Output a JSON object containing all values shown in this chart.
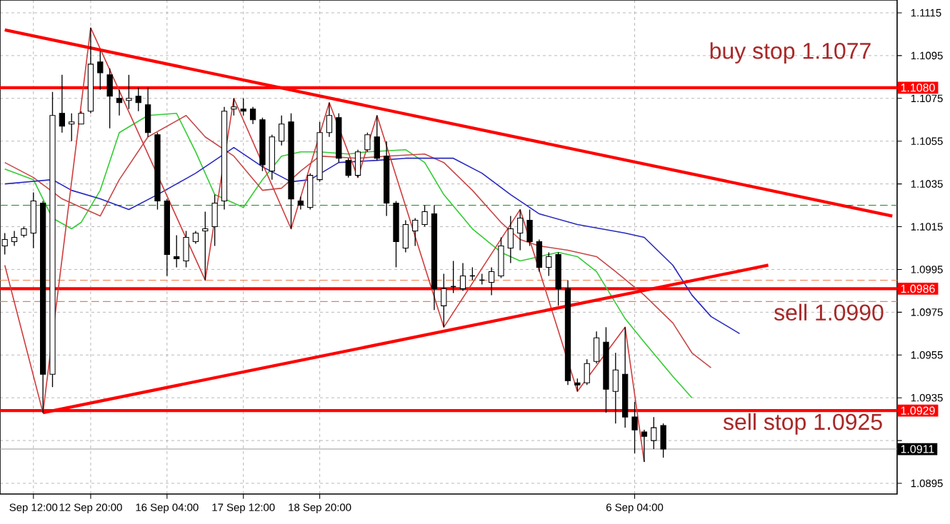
{
  "chart_data": {
    "type": "candlestick",
    "categories": [
      null,
      null,
      null,
      "Sep 12:00",
      null,
      null,
      null,
      null,
      null,
      "12 Sep 20:00",
      null,
      null,
      null,
      null,
      null,
      null,
      null,
      "16 Sep 04:00",
      null,
      null,
      null,
      null,
      null,
      null,
      null,
      "17 Sep 12:00",
      null,
      null,
      null,
      null,
      null,
      null,
      null,
      "18 Sep 20:00",
      null,
      null,
      null,
      null,
      null,
      null,
      null,
      null,
      null,
      null,
      null,
      null,
      null,
      null,
      null,
      null,
      null,
      null,
      null,
      null,
      null,
      null,
      null,
      null,
      null,
      null,
      null,
      null,
      null,
      null,
      null,
      null,
      "6 Sep 04:00",
      null,
      null,
      null,
      null,
      null,
      null,
      null,
      null,
      null,
      null,
      null,
      null,
      null,
      null,
      null,
      null,
      null,
      null,
      null,
      null,
      null,
      null,
      null,
      null,
      null,
      null,
      null
    ],
    "ohlc": [
      [
        1.1006,
        1.1012,
        1.1002,
        1.1009
      ],
      [
        1.1008,
        1.1013,
        1.1006,
        1.101
      ],
      [
        1.1011,
        1.1015,
        1.101,
        1.1014
      ],
      [
        1.1012,
        1.1031,
        1.1005,
        1.1027
      ],
      [
        1.1026,
        1.1027,
        1.0928,
        1.0946
      ],
      [
        1.0946,
        1.1078,
        1.094,
        1.1067
      ],
      [
        1.1068,
        1.1086,
        1.1059,
        1.1062
      ],
      [
        1.1063,
        1.1068,
        1.1055,
        1.1064
      ],
      [
        1.1063,
        1.1069,
        1.1063,
        1.1068
      ],
      [
        1.1069,
        1.1108,
        1.1068,
        1.1091
      ],
      [
        1.1092,
        1.1097,
        1.1079,
        1.1087
      ],
      [
        1.1086,
        1.1089,
        1.1061,
        1.1076
      ],
      [
        1.1075,
        1.1079,
        1.1067,
        1.1073
      ],
      [
        1.1074,
        1.1086,
        1.107,
        1.1075
      ],
      [
        1.1076,
        1.108,
        1.1069,
        1.1073
      ],
      [
        1.1072,
        1.108,
        1.1057,
        1.1059
      ],
      [
        1.1058,
        1.1059,
        1.1023,
        1.1027
      ],
      [
        1.1027,
        1.1028,
        1.0992,
        1.1002
      ],
      [
        1.1001,
        1.1011,
        1.0996,
        1.1
      ],
      [
        1.0999,
        1.1013,
        1.0996,
        1.101
      ],
      [
        1.1008,
        1.1013,
        1.1007,
        1.1012
      ],
      [
        1.1013,
        1.1022,
        1.099,
        1.1014
      ],
      [
        1.1015,
        1.103,
        1.1006,
        1.1026
      ],
      [
        1.1027,
        1.1071,
        1.1023,
        1.1069
      ],
      [
        1.107,
        1.1075,
        1.1067,
        1.1071
      ],
      [
        1.107,
        1.1075,
        1.1067,
        1.1069
      ],
      [
        1.107,
        1.1071,
        1.1063,
        1.1065
      ],
      [
        1.1065,
        1.1066,
        1.1041,
        1.1044
      ],
      [
        1.1041,
        1.1058,
        1.1037,
        1.1057
      ],
      [
        1.1055,
        1.1067,
        1.1053,
        1.1063
      ],
      [
        1.1064,
        1.1068,
        1.1014,
        1.1028
      ],
      [
        1.1027,
        1.1029,
        1.1023,
        1.1025
      ],
      [
        1.1024,
        1.104,
        1.1023,
        1.1039
      ],
      [
        1.1037,
        1.1064,
        1.1036,
        1.1059
      ],
      [
        1.1059,
        1.1073,
        1.1057,
        1.1067
      ],
      [
        1.1066,
        1.1068,
        1.1045,
        1.1047
      ],
      [
        1.1046,
        1.1047,
        1.1038,
        1.1039
      ],
      [
        1.1039,
        1.1051,
        1.1038,
        1.105
      ],
      [
        1.1051,
        1.1059,
        1.105,
        1.1058
      ],
      [
        1.1057,
        1.1067,
        1.1046,
        1.1047
      ],
      [
        1.1048,
        1.1055,
        1.102,
        1.1026
      ],
      [
        1.1026,
        1.1027,
        1.0996,
        1.1008
      ],
      [
        1.1005,
        1.1018,
        1.1003,
        1.1016
      ],
      [
        1.1013,
        1.1019,
        1.1006,
        1.1018
      ],
      [
        1.1016,
        1.1025,
        1.1015,
        1.1022
      ],
      [
        1.1021,
        1.1025,
        1.0976,
        1.0986
      ],
      [
        1.0978,
        1.0993,
        1.0968,
        1.0986
      ],
      [
        1.0987,
        1.0999,
        1.0984,
        1.0987
      ],
      [
        1.0986,
        1.0998,
        1.0985,
        1.0992
      ],
      [
        1.0992,
        1.0996,
        1.099,
        1.0992
      ],
      [
        1.099,
        1.0993,
        1.0988,
        1.099
      ],
      [
        1.0989,
        1.0996,
        1.0983,
        1.0994
      ],
      [
        1.0992,
        1.101,
        1.0991,
        1.1006
      ],
      [
        1.1005,
        1.102,
        1.0998,
        1.1014
      ],
      [
        1.1012,
        1.1023,
        1.1004,
        1.1019
      ],
      [
        1.1018,
        1.1023,
        1.1006,
        1.1008
      ],
      [
        1.1008,
        1.1009,
        1.0994,
        1.0996
      ],
      [
        1.0996,
        1.1003,
        1.0992,
        1.1001
      ],
      [
        1.1002,
        1.1003,
        1.0978,
        1.0986
      ],
      [
        1.0986,
        1.099,
        1.0941,
        1.0943
      ],
      [
        1.0942,
        1.0944,
        1.0938,
        1.0941
      ],
      [
        1.0942,
        1.0953,
        1.0941,
        1.0951
      ],
      [
        1.0952,
        1.0966,
        1.0951,
        1.0963
      ],
      [
        1.0961,
        1.0968,
        1.0928,
        1.0939
      ],
      [
        1.0938,
        1.0956,
        1.0923,
        1.0948
      ],
      [
        1.0946,
        1.0968,
        1.0921,
        1.0926
      ],
      [
        1.0926,
        1.0933,
        1.0909,
        1.092
      ],
      [
        1.0919,
        1.092,
        1.0905,
        1.0917
      ],
      [
        1.0915,
        1.0926,
        1.0911,
        1.0921
      ],
      [
        1.0922,
        1.0923,
        1.0907,
        1.0911
      ],
      null,
      null,
      null,
      null,
      null,
      null,
      null,
      null,
      null,
      null,
      null,
      null,
      null,
      null,
      null,
      null,
      null,
      null,
      null,
      null,
      null,
      null,
      null,
      null
    ],
    "series": [
      {
        "type": "line",
        "color": "#33cc33",
        "values": [
          1.1042,
          null,
          null,
          1.1037,
          null,
          1.1019,
          null,
          1.1014,
          1.1017,
          null,
          1.1032,
          null,
          1.1059,
          null,
          null,
          1.1067,
          null,
          null,
          1.1068,
          null,
          1.105,
          null,
          1.103,
          null,
          null,
          1.1024,
          null,
          1.1037,
          null,
          1.1048,
          null,
          1.105,
          null,
          1.105,
          null,
          null,
          1.1049,
          null,
          1.105,
          null,
          null,
          null,
          1.1051,
          null,
          1.1045,
          null,
          1.103,
          null,
          null,
          1.1014,
          null,
          null,
          1.1003,
          null,
          1.0999,
          null,
          1.1001,
          null,
          1.1003,
          null,
          1.1001,
          null,
          1.0994,
          null,
          null,
          1.0972,
          null,
          1.0961,
          null,
          null,
          1.0945,
          null,
          1.0935,
          null,
          null,
          null,
          null,
          null,
          null,
          null,
          null,
          null,
          null,
          null,
          null,
          null,
          null,
          null,
          null,
          null,
          null,
          null,
          null,
          null
        ]
      },
      {
        "type": "line",
        "color": "#c84848",
        "values": [
          1.1045,
          null,
          null,
          1.1038,
          null,
          null,
          1.1028,
          null,
          null,
          null,
          1.102,
          null,
          1.1037,
          null,
          null,
          1.1057,
          null,
          null,
          null,
          1.1067,
          null,
          1.1057,
          null,
          null,
          1.1048,
          null,
          null,
          1.1032,
          null,
          1.1033,
          null,
          1.1041,
          null,
          1.1048,
          null,
          null,
          null,
          1.1047,
          null,
          null,
          1.1048,
          null,
          null,
          null,
          1.1049,
          null,
          1.1045,
          null,
          null,
          1.1032,
          null,
          null,
          1.1017,
          null,
          1.1009,
          null,
          1.1006,
          null,
          null,
          1.1004,
          null,
          null,
          1.1001,
          null,
          1.0994,
          null,
          null,
          1.0983,
          null,
          null,
          1.097,
          null,
          1.0956,
          null,
          1.0949,
          null,
          null,
          null,
          null,
          null,
          null,
          null,
          null,
          null,
          null,
          null,
          null,
          null,
          null,
          null,
          null,
          null,
          null,
          null
        ]
      },
      {
        "type": "line",
        "color": "#2828c0",
        "values": [
          1.1035,
          null,
          null,
          null,
          null,
          1.1037,
          null,
          1.1032,
          null,
          null,
          1.1028,
          null,
          null,
          1.1023,
          null,
          null,
          1.103,
          null,
          null,
          null,
          1.104,
          null,
          null,
          null,
          1.1052,
          null,
          null,
          1.1043,
          null,
          null,
          1.1036,
          null,
          1.1037,
          null,
          null,
          1.1045,
          null,
          null,
          null,
          1.1046,
          null,
          null,
          1.1047,
          null,
          null,
          null,
          null,
          1.1047,
          null,
          null,
          1.104,
          null,
          null,
          1.103,
          null,
          null,
          1.1021,
          null,
          null,
          null,
          1.1016,
          null,
          null,
          null,
          null,
          1.1012,
          null,
          1.101,
          null,
          null,
          1.0997,
          null,
          1.0983,
          null,
          1.0973,
          null,
          null,
          1.0965,
          null,
          null,
          null,
          null,
          null,
          null,
          null,
          null,
          null,
          null,
          null,
          null,
          null,
          null,
          null,
          null
        ]
      },
      {
        "type": "line",
        "color": "#d03c3c",
        "values": [
          1.0997,
          null,
          null,
          null,
          1.0928,
          null,
          null,
          null,
          null,
          1.1108,
          null,
          null,
          null,
          null,
          null,
          null,
          null,
          null,
          null,
          null,
          null,
          1.099,
          null,
          null,
          1.1075,
          null,
          null,
          null,
          null,
          null,
          1.1014,
          null,
          null,
          null,
          1.1073,
          null,
          null,
          1.1038,
          null,
          1.1067,
          null,
          null,
          null,
          null,
          null,
          null,
          1.0968,
          null,
          null,
          null,
          null,
          null,
          null,
          null,
          1.1023,
          null,
          null,
          null,
          null,
          null,
          1.0938,
          null,
          null,
          null,
          null,
          1.0968,
          null,
          1.0905,
          null,
          null,
          null,
          null,
          null,
          null,
          null,
          null,
          null,
          null,
          null,
          null,
          null,
          null,
          null,
          null,
          null,
          null,
          null,
          null,
          null,
          null,
          null,
          null,
          null,
          null
        ]
      },
      {
        "type": "line",
        "color": "#ff0000",
        "values": [
          1.1107,
          null,
          null,
          null,
          null,
          null,
          null,
          null,
          null,
          null,
          null,
          null,
          null,
          null,
          null,
          null,
          null,
          null,
          null,
          null,
          null,
          null,
          null,
          null,
          null,
          null,
          null,
          null,
          null,
          null,
          null,
          null,
          null,
          null,
          null,
          null,
          null,
          null,
          null,
          null,
          null,
          null,
          null,
          null,
          null,
          null,
          null,
          null,
          null,
          null,
          null,
          null,
          null,
          null,
          null,
          null,
          null,
          null,
          null,
          null,
          null,
          null,
          null,
          null,
          null,
          null,
          null,
          null,
          null,
          null,
          null,
          null,
          null,
          null,
          null,
          null,
          null,
          null,
          null,
          null,
          null,
          null,
          null,
          null,
          null,
          null,
          null,
          null,
          null,
          null,
          null,
          null,
          null,
          1.102
        ]
      },
      {
        "type": "line",
        "color": "#ff0000",
        "values": [
          null,
          null,
          null,
          null,
          1.0928,
          null,
          null,
          null,
          null,
          null,
          null,
          null,
          null,
          null,
          null,
          null,
          null,
          null,
          null,
          null,
          null,
          null,
          null,
          null,
          null,
          null,
          null,
          null,
          null,
          null,
          null,
          null,
          null,
          null,
          null,
          null,
          null,
          null,
          null,
          null,
          null,
          null,
          null,
          null,
          null,
          null,
          null,
          null,
          null,
          null,
          null,
          null,
          null,
          null,
          null,
          null,
          null,
          null,
          null,
          null,
          null,
          null,
          null,
          null,
          null,
          null,
          null,
          null,
          null,
          null,
          null,
          null,
          null,
          null,
          null,
          null,
          null,
          null,
          null,
          null,
          1.0997,
          null,
          null,
          null,
          null,
          null,
          null,
          null,
          null,
          null,
          null,
          null,
          null,
          null
        ]
      }
    ],
    "ref_lines": [
      {
        "axis": "y",
        "value": 1.108,
        "label": "1.1080",
        "color": "#ff0000",
        "line_style": "solid"
      },
      {
        "axis": "y",
        "value": 1.0986,
        "label": "1.0986",
        "color": "#ff0000",
        "line_style": "solid"
      },
      {
        "axis": "y",
        "value": 1.0929,
        "label": "1.0929",
        "color": "#ff0000",
        "line_style": "solid"
      },
      {
        "axis": "y",
        "value": 1.0911,
        "label": "1.0911",
        "color": "#999999",
        "line_style": "solid"
      },
      {
        "axis": "y",
        "value": 1.1025,
        "color": "#1a8a1a",
        "line_style": "dashed"
      },
      {
        "axis": "y",
        "value": 1.099,
        "color": "#e8804a",
        "line_style": "dashed"
      },
      {
        "axis": "y",
        "value": 1.098,
        "color": "#e8804a",
        "line_style": "dashed"
      }
    ],
    "annotations": [
      "buy stop 1.1077",
      "sell 1.0990",
      "sell stop 1.0925"
    ],
    "ylim": [
      1.089,
      1.1121
    ],
    "yticks": [
      1.1115,
      1.1095,
      1.1075,
      1.1055,
      1.1035,
      1.1015,
      1.0995,
      1.0975,
      1.0955,
      1.0935,
      {
        "value": 1.0915,
        "label": null
      },
      1.0895
    ],
    "grid": true,
    "marker": "none"
  }
}
